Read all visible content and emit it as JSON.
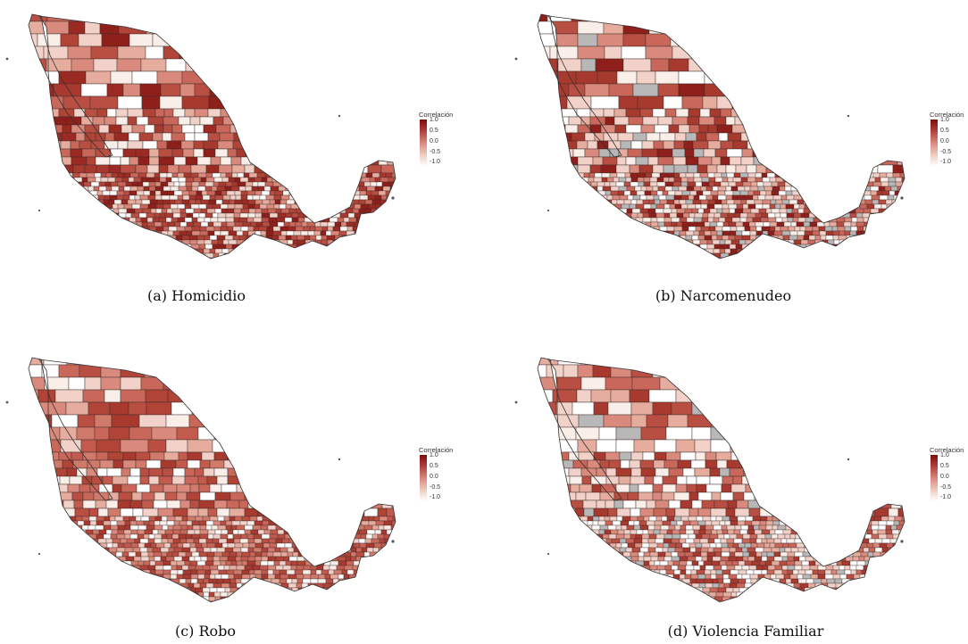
{
  "figure": {
    "panels": [
      {
        "caption": "(a)  Homicidio",
        "legend": {
          "title": "Correlación",
          "ticks": [
            "1.0",
            "0.5",
            "0.0",
            "-0.5",
            "-1.0"
          ]
        },
        "palette": [
          "#8f1f1a",
          "#a8392f",
          "#b94e42",
          "#c9685a",
          "#d98a7c",
          "#e6ad9f",
          "#f2d2c8",
          "#faeee9",
          "#ffffff",
          "#9a2a22",
          "#b04437"
        ]
      },
      {
        "caption": "(b)  Narcomenudeo",
        "legend": {
          "title": "Correlación",
          "ticks": [
            "1.0",
            "0.5",
            "0.0",
            "-0.5",
            "-1.0"
          ]
        },
        "palette": [
          "#b94e42",
          "#d98a7c",
          "#e6ad9f",
          "#f2d2c8",
          "#faeee9",
          "#ffffff",
          "#b8b8b8",
          "#c9685a",
          "#a8392f",
          "#8f1f1a",
          "#f2d2c8"
        ]
      },
      {
        "caption": "(c)  Robo",
        "legend": {
          "title": "Correlación",
          "ticks": [
            "1.0",
            "0.5",
            "0.0",
            "-0.5",
            "-1.0"
          ]
        },
        "palette": [
          "#a8392f",
          "#b94e42",
          "#c9685a",
          "#d98a7c",
          "#e6ad9f",
          "#f2d2c8",
          "#faeee9",
          "#ffffff",
          "#b04437",
          "#c25b4e",
          "#d07a6b"
        ]
      },
      {
        "caption": "(d) Violencia Familiar",
        "legend": {
          "title": "Correlación",
          "ticks": [
            "1.0",
            "0.5",
            "0.0",
            "-0.5",
            "-1.0"
          ]
        },
        "palette": [
          "#e6ad9f",
          "#f2d2c8",
          "#faeee9",
          "#ffffff",
          "#d98a7c",
          "#c9685a",
          "#b8b8b8",
          "#b94e42",
          "#f2d2c8",
          "#ffffff",
          "#a8392f"
        ]
      }
    ]
  }
}
